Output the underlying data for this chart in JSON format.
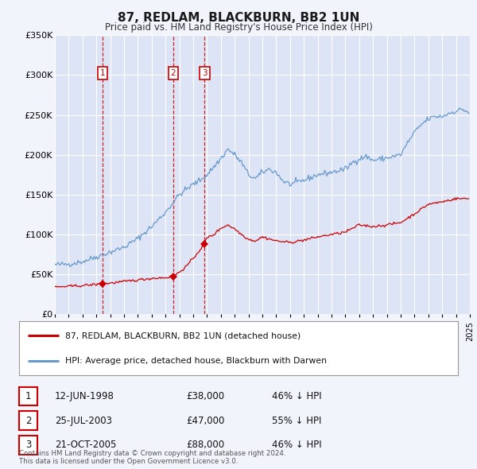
{
  "title": "87, REDLAM, BLACKBURN, BB2 1UN",
  "subtitle": "Price paid vs. HM Land Registry's House Price Index (HPI)",
  "bg_color": "#f2f4fb",
  "plot_bg_color": "#dde4f5",
  "grid_color": "#ffffff",
  "red_color": "#cc0000",
  "blue_color": "#6699cc",
  "ylim": [
    0,
    350000
  ],
  "yticks": [
    0,
    50000,
    100000,
    150000,
    200000,
    250000,
    300000,
    350000
  ],
  "ytick_labels": [
    "£0",
    "£50K",
    "£100K",
    "£150K",
    "£200K",
    "£250K",
    "£300K",
    "£350K"
  ],
  "sale_dates": [
    1998.45,
    2003.56,
    2005.81
  ],
  "sale_prices": [
    38000,
    47000,
    88000
  ],
  "vline_dates": [
    1998.45,
    2003.56,
    2005.81
  ],
  "legend_entries": [
    "87, REDLAM, BLACKBURN, BB2 1UN (detached house)",
    "HPI: Average price, detached house, Blackburn with Darwen"
  ],
  "table_rows": [
    [
      "1",
      "12-JUN-1998",
      "£38,000",
      "46% ↓ HPI"
    ],
    [
      "2",
      "25-JUL-2003",
      "£47,000",
      "55% ↓ HPI"
    ],
    [
      "3",
      "21-OCT-2005",
      "£88,000",
      "46% ↓ HPI"
    ]
  ],
  "footer": "Contains HM Land Registry data © Crown copyright and database right 2024.\nThis data is licensed under the Open Government Licence v3.0.",
  "xmin": 1995,
  "xmax": 2025,
  "hpi_anchors_t": [
    1995.0,
    1996.0,
    1997.0,
    1998.0,
    1999.0,
    2000.0,
    2001.0,
    2002.0,
    2003.0,
    2004.0,
    2005.0,
    2005.5,
    2006.0,
    2007.0,
    2007.5,
    2008.0,
    2008.5,
    2009.0,
    2009.5,
    2010.0,
    2010.5,
    2011.0,
    2011.5,
    2012.0,
    2012.5,
    2013.0,
    2014.0,
    2015.0,
    2016.0,
    2016.5,
    2017.0,
    2017.5,
    2018.0,
    2019.0,
    2020.0,
    2020.5,
    2021.0,
    2021.5,
    2022.0,
    2022.5,
    2023.0,
    2023.5,
    2024.0,
    2024.5,
    2024.9
  ],
  "hpi_anchors_v": [
    62000,
    63000,
    66000,
    72000,
    78000,
    84000,
    95000,
    110000,
    128000,
    150000,
    163000,
    168000,
    175000,
    195000,
    207000,
    200000,
    190000,
    175000,
    170000,
    178000,
    182000,
    178000,
    167000,
    163000,
    165000,
    168000,
    175000,
    178000,
    182000,
    190000,
    195000,
    198000,
    193000,
    196000,
    200000,
    215000,
    228000,
    238000,
    245000,
    248000,
    248000,
    252000,
    255000,
    257000,
    253000
  ],
  "red_anchors_t": [
    1995.0,
    1996.0,
    1997.0,
    1998.0,
    1998.45,
    1999.0,
    2000.0,
    2001.0,
    2002.0,
    2003.0,
    2003.56,
    2004.0,
    2004.5,
    2005.0,
    2005.81,
    2006.0,
    2006.5,
    2007.0,
    2007.5,
    2008.0,
    2008.5,
    2009.0,
    2009.5,
    2010.0,
    2011.0,
    2012.0,
    2013.0,
    2014.0,
    2015.0,
    2016.0,
    2017.0,
    2018.0,
    2019.0,
    2020.0,
    2021.0,
    2022.0,
    2023.0,
    2024.0,
    2024.9
  ],
  "red_anchors_v": [
    34000,
    35000,
    36000,
    37500,
    38000,
    39000,
    41000,
    43000,
    45000,
    46000,
    47000,
    53000,
    60000,
    70000,
    88000,
    96000,
    100000,
    108000,
    112000,
    107000,
    100000,
    94000,
    92000,
    97000,
    92000,
    90000,
    93000,
    97000,
    100000,
    103000,
    112000,
    110000,
    112000,
    115000,
    126000,
    138000,
    141000,
    145000,
    145000
  ]
}
